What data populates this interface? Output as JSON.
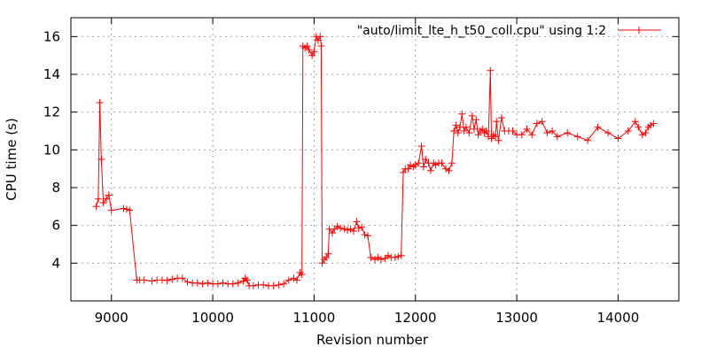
{
  "chart_data": {
    "type": "line",
    "title": "",
    "xlabel": "Revision number",
    "ylabel": "CPU time (s)",
    "xlim": [
      8600,
      14600
    ],
    "ylim": [
      2,
      17
    ],
    "x_ticks": [
      9000,
      10000,
      11000,
      12000,
      13000,
      14000
    ],
    "y_ticks": [
      4,
      6,
      8,
      10,
      12,
      14,
      16
    ],
    "legend_position": "top-right",
    "series": [
      {
        "name": "\"auto/limit_lte_h_t50_coll.cpu\" using 1:2",
        "color": "#ff0000",
        "marker": "plus",
        "points": [
          [
            8850,
            7.0
          ],
          [
            8870,
            7.4
          ],
          [
            8885,
            12.5
          ],
          [
            8900,
            9.5
          ],
          [
            8920,
            7.2
          ],
          [
            8950,
            7.4
          ],
          [
            8975,
            7.6
          ],
          [
            9000,
            6.8
          ],
          [
            9120,
            6.9
          ],
          [
            9150,
            6.85
          ],
          [
            9180,
            6.8
          ],
          [
            9250,
            3.1
          ],
          [
            9280,
            3.1
          ],
          [
            9320,
            3.1
          ],
          [
            9400,
            3.05
          ],
          [
            9450,
            3.1
          ],
          [
            9500,
            3.1
          ],
          [
            9550,
            3.08
          ],
          [
            9600,
            3.15
          ],
          [
            9650,
            3.2
          ],
          [
            9700,
            3.2
          ],
          [
            9750,
            3.0
          ],
          [
            9800,
            2.95
          ],
          [
            9850,
            2.95
          ],
          [
            9900,
            2.9
          ],
          [
            9950,
            2.95
          ],
          [
            10000,
            2.9
          ],
          [
            10050,
            2.9
          ],
          [
            10100,
            2.95
          ],
          [
            10150,
            2.9
          ],
          [
            10200,
            2.9
          ],
          [
            10250,
            2.95
          ],
          [
            10300,
            3.05
          ],
          [
            10320,
            3.2
          ],
          [
            10340,
            3.1
          ],
          [
            10360,
            2.8
          ],
          [
            10400,
            2.8
          ],
          [
            10450,
            2.85
          ],
          [
            10500,
            2.85
          ],
          [
            10550,
            2.8
          ],
          [
            10600,
            2.8
          ],
          [
            10650,
            2.85
          ],
          [
            10700,
            2.9
          ],
          [
            10750,
            3.1
          ],
          [
            10800,
            3.2
          ],
          [
            10830,
            3.1
          ],
          [
            10860,
            3.5
          ],
          [
            10880,
            3.4
          ],
          [
            10890,
            15.5
          ],
          [
            10910,
            15.4
          ],
          [
            10930,
            15.5
          ],
          [
            10950,
            15.3
          ],
          [
            10980,
            15.0
          ],
          [
            11000,
            15.2
          ],
          [
            11020,
            16.0
          ],
          [
            11040,
            15.8
          ],
          [
            11060,
            16.0
          ],
          [
            11070,
            15.5
          ],
          [
            11080,
            4.0
          ],
          [
            11100,
            4.2
          ],
          [
            11120,
            4.3
          ],
          [
            11140,
            4.5
          ],
          [
            11150,
            5.8
          ],
          [
            11180,
            5.6
          ],
          [
            11200,
            5.8
          ],
          [
            11230,
            5.95
          ],
          [
            11260,
            5.85
          ],
          [
            11300,
            5.8
          ],
          [
            11330,
            5.75
          ],
          [
            11360,
            5.8
          ],
          [
            11390,
            5.7
          ],
          [
            11420,
            6.2
          ],
          [
            11440,
            5.85
          ],
          [
            11470,
            5.9
          ],
          [
            11500,
            5.5
          ],
          [
            11530,
            5.45
          ],
          [
            11560,
            4.3
          ],
          [
            11600,
            4.2
          ],
          [
            11630,
            4.3
          ],
          [
            11660,
            4.2
          ],
          [
            11700,
            4.25
          ],
          [
            11730,
            4.4
          ],
          [
            11760,
            4.3
          ],
          [
            11800,
            4.3
          ],
          [
            11830,
            4.35
          ],
          [
            11860,
            4.4
          ],
          [
            11880,
            8.8
          ],
          [
            11900,
            9.0
          ],
          [
            11930,
            9.0
          ],
          [
            11950,
            9.2
          ],
          [
            11980,
            9.1
          ],
          [
            12000,
            9.2
          ],
          [
            12030,
            9.3
          ],
          [
            12060,
            10.2
          ],
          [
            12080,
            9.1
          ],
          [
            12100,
            9.5
          ],
          [
            12130,
            9.3
          ],
          [
            12150,
            8.9
          ],
          [
            12180,
            9.3
          ],
          [
            12200,
            9.2
          ],
          [
            12230,
            9.3
          ],
          [
            12260,
            9.3
          ],
          [
            12300,
            9.0
          ],
          [
            12330,
            8.9
          ],
          [
            12360,
            9.3
          ],
          [
            12380,
            11.0
          ],
          [
            12400,
            11.3
          ],
          [
            12420,
            10.9
          ],
          [
            12440,
            11.2
          ],
          [
            12460,
            11.9
          ],
          [
            12480,
            11.0
          ],
          [
            12500,
            11.2
          ],
          [
            12530,
            10.9
          ],
          [
            12560,
            11.8
          ],
          [
            12580,
            11.1
          ],
          [
            12600,
            11.6
          ],
          [
            12620,
            10.8
          ],
          [
            12640,
            11.0
          ],
          [
            12660,
            11.1
          ],
          [
            12680,
            10.9
          ],
          [
            12700,
            11.0
          ],
          [
            12720,
            10.7
          ],
          [
            12740,
            14.2
          ],
          [
            12750,
            10.6
          ],
          [
            12770,
            10.8
          ],
          [
            12790,
            10.7
          ],
          [
            12800,
            11.5
          ],
          [
            12820,
            10.5
          ],
          [
            12850,
            11.7
          ],
          [
            12880,
            11.0
          ],
          [
            12920,
            11.0
          ],
          [
            12960,
            11.0
          ],
          [
            13000,
            10.8
          ],
          [
            13050,
            10.8
          ],
          [
            13100,
            11.1
          ],
          [
            13150,
            10.8
          ],
          [
            13200,
            11.4
          ],
          [
            13250,
            11.5
          ],
          [
            13300,
            10.9
          ],
          [
            13350,
            11.0
          ],
          [
            13400,
            10.7
          ],
          [
            13500,
            10.9
          ],
          [
            13600,
            10.7
          ],
          [
            13700,
            10.5
          ],
          [
            13800,
            11.2
          ],
          [
            13900,
            10.9
          ],
          [
            14000,
            10.6
          ],
          [
            14100,
            11.0
          ],
          [
            14170,
            11.5
          ],
          [
            14200,
            11.2
          ],
          [
            14240,
            10.8
          ],
          [
            14270,
            10.9
          ],
          [
            14300,
            11.2
          ],
          [
            14320,
            11.3
          ],
          [
            14350,
            11.4
          ]
        ]
      }
    ]
  }
}
